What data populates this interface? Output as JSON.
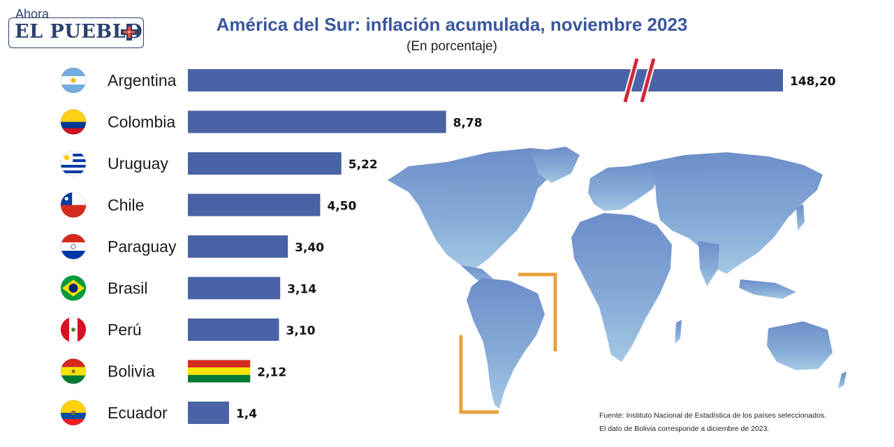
{
  "logo": {
    "small": "Ahora",
    "name": "EL PUEBLO"
  },
  "header": {
    "title": "América del Sur: inflación acumulada, noviembre 2023",
    "subtitle": "(En porcentaje)"
  },
  "footer": {
    "source": "Fuente: Instituto Nacional de Estadística de los países seleccionados.",
    "note": "El dato de Bolivia corresponde a diciembre de 2023."
  },
  "colors": {
    "bar": "#4a63a6",
    "title": "#3a579e",
    "axis_break": "#d0283a",
    "map_accent": "#e8a13d",
    "map": "#6f96c9"
  },
  "chart_data": {
    "type": "bar",
    "orientation": "horizontal",
    "title": "América del Sur: inflación acumulada, noviembre 2023",
    "subtitle": "(En porcentaje)",
    "axis_break": "Argentina",
    "categories": [
      "Argentina",
      "Colombia",
      "Uruguay",
      "Chile",
      "Paraguay",
      "Brasil",
      "Perú",
      "Bolivia",
      "Ecuador"
    ],
    "value_labels": [
      "148,20",
      "8,78",
      "5,22",
      "4,50",
      "3,40",
      "3,14",
      "3,10",
      "2,12",
      "1,4"
    ],
    "values": [
      148.2,
      8.78,
      5.22,
      4.5,
      3.4,
      3.14,
      3.1,
      2.12,
      1.4
    ],
    "flags": [
      "argentina-flag",
      "colombia-flag",
      "uruguay-flag",
      "chile-flag",
      "paraguay-flag",
      "brazil-flag",
      "peru-flag",
      "bolivia-flag",
      "ecuador-flag"
    ]
  }
}
